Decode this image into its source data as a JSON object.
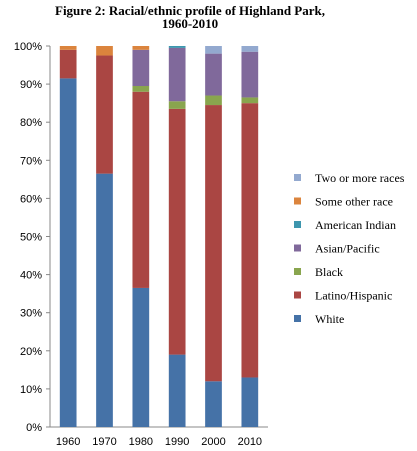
{
  "chart_data": {
    "type": "bar",
    "stacked": true,
    "title_line1": "Figure 2: Racial/ethnic profile of Highland Park,",
    "title_line2": "1960-2010",
    "xlabel": "",
    "ylabel": "",
    "ylim": [
      0,
      100
    ],
    "y_ticks": [
      "0%",
      "10%",
      "20%",
      "30%",
      "40%",
      "50%",
      "60%",
      "70%",
      "80%",
      "90%",
      "100%"
    ],
    "categories": [
      "1960",
      "1970",
      "1980",
      "1990",
      "2000",
      "2010"
    ],
    "series": [
      {
        "name": "White",
        "color": "#4572a7",
        "values": [
          91.5,
          66.5,
          36.5,
          19,
          12,
          13
        ]
      },
      {
        "name": "Latino/Hispanic",
        "color": "#aa4643",
        "values": [
          7.5,
          31,
          51.5,
          64.5,
          72.5,
          72
        ]
      },
      {
        "name": "Black",
        "color": "#89a54e",
        "values": [
          0,
          0,
          1.5,
          2,
          2.5,
          1.5
        ]
      },
      {
        "name": "Asian/Pacific",
        "color": "#80699b",
        "values": [
          0,
          0,
          9.5,
          14,
          11,
          12
        ]
      },
      {
        "name": "American Indian",
        "color": "#3d96ae",
        "values": [
          0,
          0,
          0,
          0.5,
          0,
          0
        ]
      },
      {
        "name": "Some other race",
        "color": "#db843d",
        "values": [
          1,
          2.5,
          1,
          0,
          0,
          0
        ]
      },
      {
        "name": "Two or more races",
        "color": "#93a9cf",
        "values": [
          0,
          0,
          0,
          0,
          2,
          1.5
        ]
      }
    ],
    "legend_order": [
      "Two or more races",
      "Some other race",
      "American Indian",
      "Asian/Pacific",
      "Black",
      "Latino/Hispanic",
      "White"
    ],
    "legend_position": "right",
    "grid": false
  }
}
